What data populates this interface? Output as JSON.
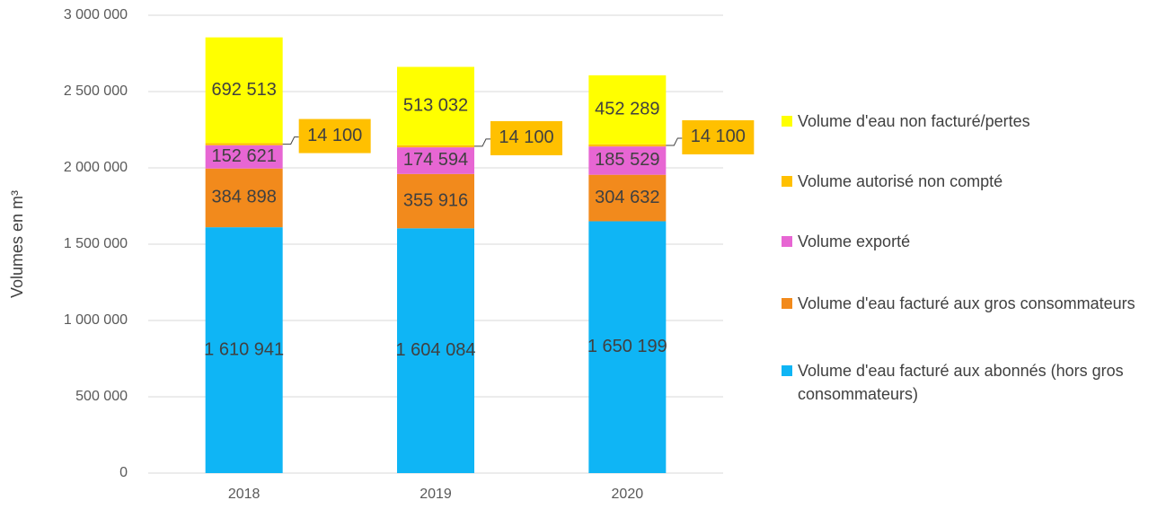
{
  "chart_data": {
    "type": "stacked_bar",
    "ylabel": "Volumes en m³",
    "categories": [
      "2018",
      "2019",
      "2020"
    ],
    "series": [
      {
        "name": "Volume d'eau facturé aux abonnés (hors gros consommateurs)",
        "color": "#0fb5f5",
        "values": [
          1610941,
          1604084,
          1650199
        ],
        "value_labels": [
          "1 610 941",
          "1 604 084",
          "1 650 199"
        ]
      },
      {
        "name": "Volume d'eau facturé aux gros consommateurs",
        "color": "#f28a1c",
        "values": [
          384898,
          355916,
          304632
        ],
        "value_labels": [
          "384 898",
          "355 916",
          "304 632"
        ]
      },
      {
        "name": "Volume exporté",
        "color": "#e766d3",
        "values": [
          152621,
          174594,
          185529
        ],
        "value_labels": [
          "152 621",
          "174 594",
          "185 529"
        ]
      },
      {
        "name": "Volume autorisé non compté",
        "color": "#ffc000",
        "values": [
          14100,
          14100,
          14100
        ],
        "value_labels": [
          "14 100",
          "14 100",
          "14 100"
        ]
      },
      {
        "name": "Volume d'eau non facturé/pertes",
        "color": "#ffff00",
        "values": [
          692513,
          513032,
          452289
        ],
        "value_labels": [
          "692 513",
          "513 032",
          "452 289"
        ]
      }
    ],
    "ylim": [
      0,
      3000000
    ],
    "yticks": [
      0,
      {
        "value": 500000,
        "label": "500 000"
      },
      {
        "value": 1000000,
        "label": "1 000 000"
      },
      {
        "value": 1500000,
        "label": "1 500 000"
      },
      {
        "value": 2000000,
        "label": "2 000 000"
      },
      {
        "value": 2500000,
        "label": "2 500 000"
      },
      {
        "value": 3000000,
        "label": "3 000 000"
      }
    ],
    "grid": true,
    "legend": "right"
  }
}
